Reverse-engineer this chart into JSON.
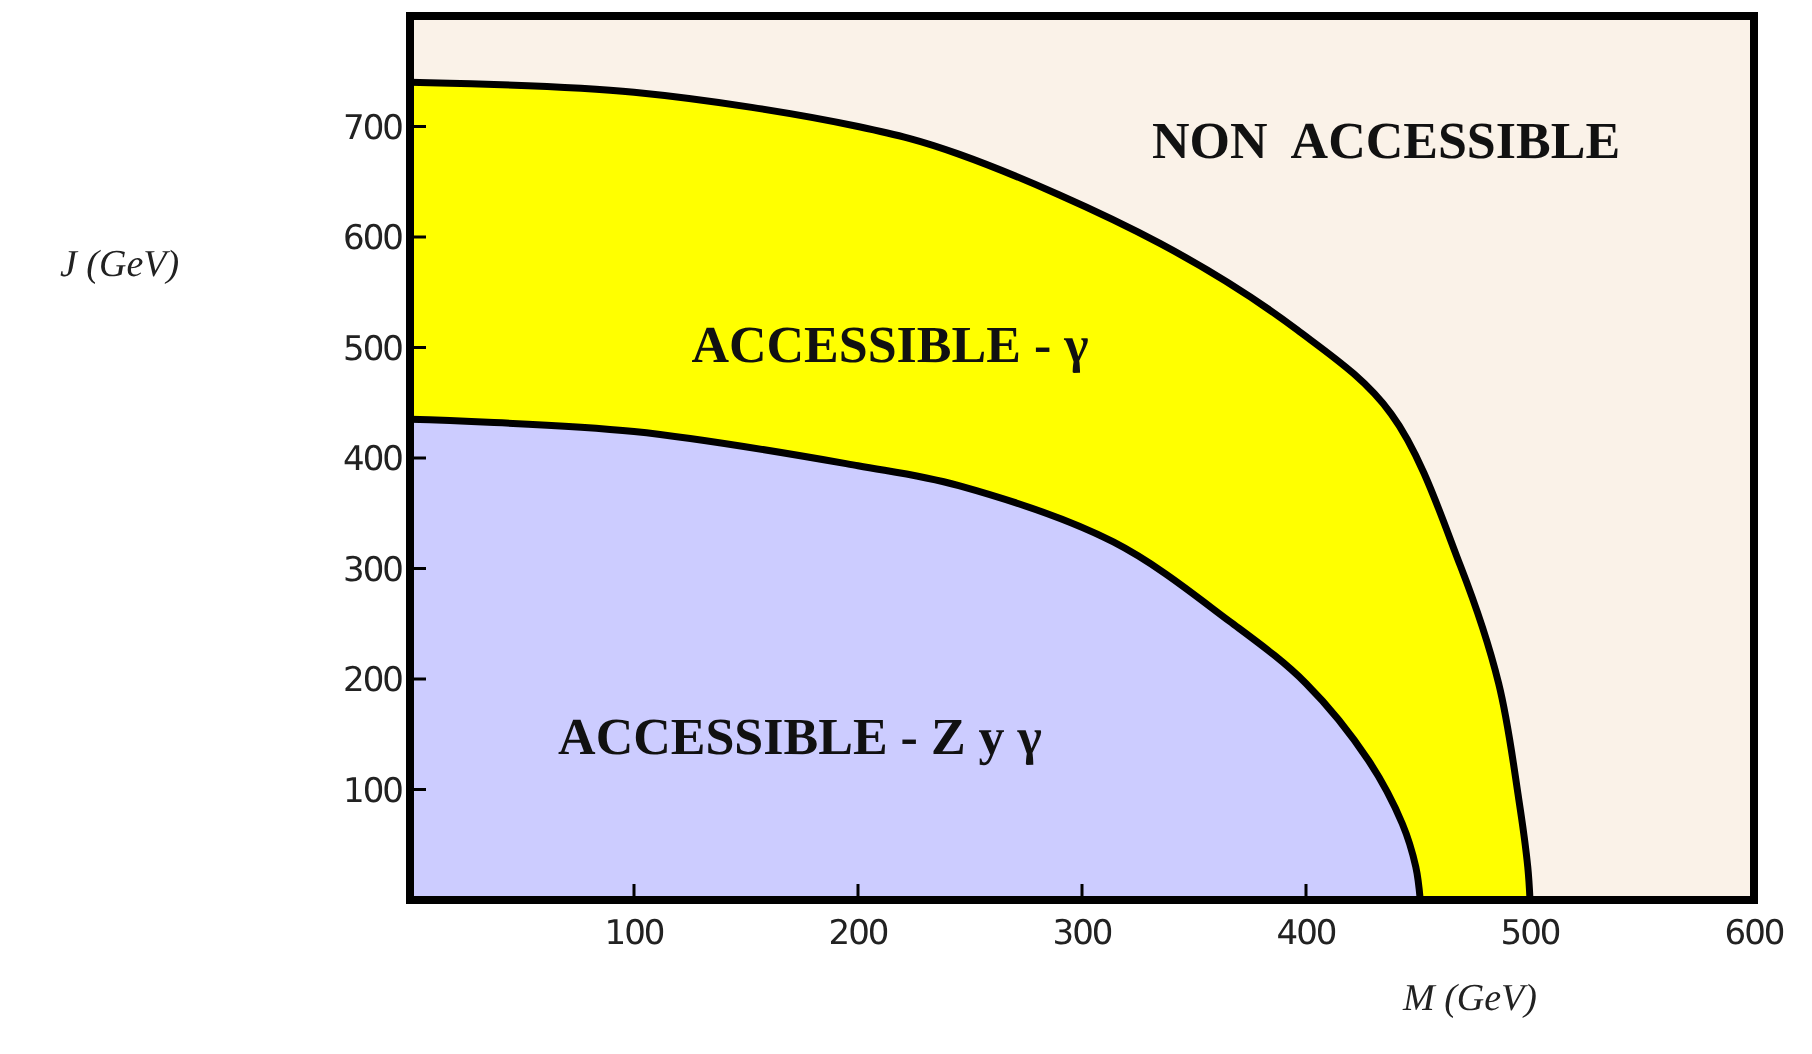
{
  "chart_data": {
    "type": "area",
    "xlabel": "M (GeV)",
    "ylabel": "J (GeV)",
    "xlim": [
      0,
      600
    ],
    "ylim": [
      0,
      800
    ],
    "xticks": [
      100,
      200,
      300,
      400,
      500,
      600
    ],
    "yticks": [
      100,
      200,
      300,
      400,
      500,
      600,
      700
    ],
    "series": [
      {
        "color": "#ffff00",
        "x": [
          0,
          100,
          200,
          245,
          335,
          396,
          438,
          469,
          486,
          495,
          499,
          500
        ],
        "values": [
          740,
          731,
          700,
          675,
          594,
          516,
          440,
          302,
          196,
          91,
          30,
          0
        ]
      },
      {
        "color": "#ccccff",
        "x": [
          0,
          100,
          200,
          245,
          314,
          366,
          400,
          428,
          443,
          449,
          451
        ],
        "values": [
          435,
          424,
          393,
          375,
          324,
          252,
          196,
          126,
          69,
          30,
          0
        ]
      }
    ],
    "annotations": [
      "NON  ACCESSIBLE",
      "ACCESSIBLE - γ",
      "ACCESSIBLE - Z y γ"
    ]
  }
}
